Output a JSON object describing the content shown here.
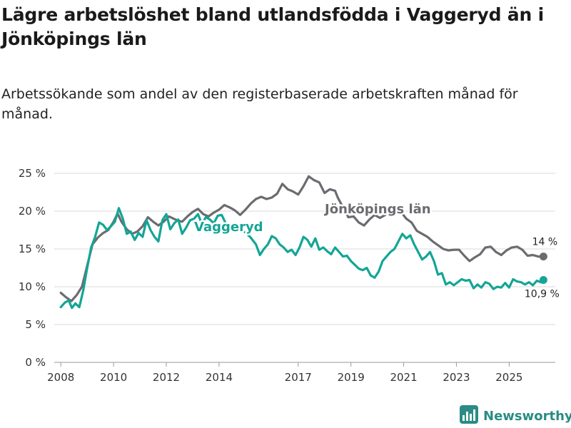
{
  "title": "Lägre arbetslöshet bland utlandsfödda i Vaggeryd än i Jönköpings län",
  "subtitle": "Arbetssökande som andel av den registerbaserade arbetskraften månad för månad.",
  "brand": {
    "name": "Newsworthy",
    "icon": "newsworthy-logo-icon"
  },
  "colors": {
    "jonkoping": "#6b6b70",
    "vaggeryd": "#14a596",
    "grid": "#d9d9d9",
    "brand": "#2a8c84"
  },
  "chart_data": {
    "type": "line",
    "title": "Lägre arbetslöshet bland utlandsfödda i Vaggeryd än i Jönköpings län",
    "xlabel": "",
    "ylabel": "",
    "xlim": [
      2007.75,
      2026.75
    ],
    "ylim": [
      0,
      25
    ],
    "yticks": [
      0,
      5,
      10,
      15,
      20,
      25
    ],
    "ytick_labels": [
      "0 %",
      "5 %",
      "10 %",
      "15 %",
      "20 %",
      "25 %"
    ],
    "xtick_values": [
      2008,
      2010,
      2012,
      2014,
      2017,
      2019,
      2021,
      2023,
      2025
    ],
    "xtick_labels": [
      "2008",
      "2010",
      "2012",
      "2014",
      "2017",
      "2019",
      "2021",
      "2023",
      "2025"
    ],
    "grid": true,
    "series": [
      {
        "name": "Jönköpings län",
        "label": "Jönköpings län",
        "end_label": "14 %",
        "points": [
          [
            2008.0,
            9.2
          ],
          [
            2008.2,
            8.6
          ],
          [
            2008.4,
            8.1
          ],
          [
            2008.6,
            8.9
          ],
          [
            2008.8,
            10.0
          ],
          [
            2009.0,
            12.8
          ],
          [
            2009.2,
            15.6
          ],
          [
            2009.4,
            16.5
          ],
          [
            2009.6,
            17.1
          ],
          [
            2009.8,
            17.5
          ],
          [
            2010.0,
            18.6
          ],
          [
            2010.15,
            19.7
          ],
          [
            2010.3,
            18.6
          ],
          [
            2010.5,
            17.6
          ],
          [
            2010.7,
            17.0
          ],
          [
            2010.9,
            17.3
          ],
          [
            2011.1,
            18.0
          ],
          [
            2011.3,
            19.2
          ],
          [
            2011.5,
            18.6
          ],
          [
            2011.7,
            18.1
          ],
          [
            2011.9,
            18.6
          ],
          [
            2012.1,
            19.3
          ],
          [
            2012.4,
            18.8
          ],
          [
            2012.6,
            18.6
          ],
          [
            2012.8,
            19.3
          ],
          [
            2013.0,
            19.9
          ],
          [
            2013.2,
            20.3
          ],
          [
            2013.4,
            19.6
          ],
          [
            2013.6,
            19.3
          ],
          [
            2013.8,
            19.8
          ],
          [
            2014.0,
            20.2
          ],
          [
            2014.2,
            20.8
          ],
          [
            2014.4,
            20.5
          ],
          [
            2014.6,
            20.1
          ],
          [
            2014.8,
            19.5
          ],
          [
            2015.0,
            20.2
          ],
          [
            2015.2,
            21.0
          ],
          [
            2015.4,
            21.6
          ],
          [
            2015.6,
            21.9
          ],
          [
            2015.8,
            21.6
          ],
          [
            2016.0,
            21.8
          ],
          [
            2016.2,
            22.3
          ],
          [
            2016.4,
            23.6
          ],
          [
            2016.6,
            22.9
          ],
          [
            2016.8,
            22.6
          ],
          [
            2017.0,
            22.2
          ],
          [
            2017.2,
            23.3
          ],
          [
            2017.4,
            24.6
          ],
          [
            2017.6,
            24.1
          ],
          [
            2017.8,
            23.8
          ],
          [
            2018.0,
            22.4
          ],
          [
            2018.2,
            22.9
          ],
          [
            2018.4,
            22.7
          ],
          [
            2018.5,
            21.8
          ],
          [
            2018.7,
            20.5
          ],
          [
            2018.9,
            19.2
          ],
          [
            2019.1,
            19.3
          ],
          [
            2019.3,
            18.5
          ],
          [
            2019.5,
            18.1
          ],
          [
            2019.7,
            18.9
          ],
          [
            2019.9,
            19.5
          ],
          [
            2020.1,
            19.1
          ],
          [
            2020.3,
            19.5
          ],
          [
            2020.5,
            20.2
          ],
          [
            2020.7,
            20.1
          ],
          [
            2020.9,
            19.9
          ],
          [
            2021.1,
            19.0
          ],
          [
            2021.3,
            18.5
          ],
          [
            2021.5,
            17.4
          ],
          [
            2021.7,
            17.0
          ],
          [
            2021.9,
            16.6
          ],
          [
            2022.1,
            16.0
          ],
          [
            2022.3,
            15.5
          ],
          [
            2022.5,
            15.0
          ],
          [
            2022.7,
            14.8
          ],
          [
            2022.9,
            14.9
          ],
          [
            2023.1,
            14.9
          ],
          [
            2023.3,
            14.1
          ],
          [
            2023.5,
            13.4
          ],
          [
            2023.7,
            13.9
          ],
          [
            2023.9,
            14.3
          ],
          [
            2024.1,
            15.2
          ],
          [
            2024.3,
            15.3
          ],
          [
            2024.5,
            14.6
          ],
          [
            2024.7,
            14.2
          ],
          [
            2024.9,
            14.8
          ],
          [
            2025.1,
            15.2
          ],
          [
            2025.3,
            15.3
          ],
          [
            2025.5,
            14.9
          ],
          [
            2025.7,
            14.1
          ],
          [
            2025.9,
            14.2
          ],
          [
            2026.1,
            14.0
          ],
          [
            2026.3,
            14.0
          ]
        ]
      },
      {
        "name": "Vaggeryd",
        "label": "Vaggeryd",
        "end_label": "10,9 %",
        "points": [
          [
            2008.0,
            7.3
          ],
          [
            2008.15,
            7.9
          ],
          [
            2008.3,
            8.2
          ],
          [
            2008.42,
            7.2
          ],
          [
            2008.55,
            7.8
          ],
          [
            2008.7,
            7.3
          ],
          [
            2008.85,
            9.5
          ],
          [
            2009.0,
            12.5
          ],
          [
            2009.15,
            15.2
          ],
          [
            2009.3,
            16.6
          ],
          [
            2009.45,
            18.5
          ],
          [
            2009.6,
            18.2
          ],
          [
            2009.75,
            17.5
          ],
          [
            2009.9,
            18.0
          ],
          [
            2010.05,
            18.6
          ],
          [
            2010.2,
            20.4
          ],
          [
            2010.35,
            19.0
          ],
          [
            2010.5,
            17.0
          ],
          [
            2010.65,
            17.3
          ],
          [
            2010.8,
            16.2
          ],
          [
            2010.95,
            17.1
          ],
          [
            2011.1,
            16.6
          ],
          [
            2011.25,
            18.8
          ],
          [
            2011.4,
            17.5
          ],
          [
            2011.55,
            16.6
          ],
          [
            2011.7,
            16.0
          ],
          [
            2011.85,
            18.8
          ],
          [
            2012.0,
            19.6
          ],
          [
            2012.15,
            17.6
          ],
          [
            2012.3,
            18.4
          ],
          [
            2012.45,
            18.9
          ],
          [
            2012.6,
            17.0
          ],
          [
            2012.75,
            17.8
          ],
          [
            2012.9,
            18.8
          ],
          [
            2013.05,
            19.0
          ],
          [
            2013.2,
            19.6
          ],
          [
            2013.35,
            18.3
          ],
          [
            2013.5,
            19.2
          ],
          [
            2013.65,
            18.9
          ],
          [
            2013.8,
            18.4
          ],
          [
            2013.95,
            19.4
          ],
          [
            2014.1,
            19.5
          ],
          [
            2014.25,
            18.4
          ],
          [
            2014.4,
            18.2
          ],
          [
            2014.55,
            17.8
          ],
          [
            2014.7,
            18.0
          ],
          [
            2014.85,
            17.4
          ],
          [
            2015.0,
            17.2
          ],
          [
            2015.2,
            16.5
          ],
          [
            2015.4,
            15.6
          ],
          [
            2015.55,
            14.2
          ],
          [
            2015.7,
            15.0
          ],
          [
            2015.85,
            15.6
          ],
          [
            2016.0,
            16.7
          ],
          [
            2016.15,
            16.4
          ],
          [
            2016.3,
            15.6
          ],
          [
            2016.45,
            15.2
          ],
          [
            2016.6,
            14.6
          ],
          [
            2016.75,
            14.9
          ],
          [
            2016.9,
            14.2
          ],
          [
            2017.05,
            15.2
          ],
          [
            2017.2,
            16.6
          ],
          [
            2017.35,
            16.2
          ],
          [
            2017.5,
            15.3
          ],
          [
            2017.65,
            16.4
          ],
          [
            2017.8,
            14.9
          ],
          [
            2017.95,
            15.2
          ],
          [
            2018.1,
            14.7
          ],
          [
            2018.25,
            14.3
          ],
          [
            2018.4,
            15.2
          ],
          [
            2018.55,
            14.6
          ],
          [
            2018.7,
            14.0
          ],
          [
            2018.85,
            14.1
          ],
          [
            2019.0,
            13.4
          ],
          [
            2019.15,
            12.9
          ],
          [
            2019.3,
            12.4
          ],
          [
            2019.45,
            12.2
          ],
          [
            2019.6,
            12.5
          ],
          [
            2019.75,
            11.5
          ],
          [
            2019.9,
            11.2
          ],
          [
            2020.05,
            12.0
          ],
          [
            2020.2,
            13.4
          ],
          [
            2020.35,
            14.0
          ],
          [
            2020.5,
            14.6
          ],
          [
            2020.65,
            15.0
          ],
          [
            2020.8,
            16.0
          ],
          [
            2020.95,
            17.0
          ],
          [
            2021.1,
            16.4
          ],
          [
            2021.25,
            16.8
          ],
          [
            2021.4,
            15.6
          ],
          [
            2021.55,
            14.6
          ],
          [
            2021.7,
            13.6
          ],
          [
            2021.85,
            14.0
          ],
          [
            2022.0,
            14.6
          ],
          [
            2022.15,
            13.4
          ],
          [
            2022.3,
            11.6
          ],
          [
            2022.45,
            11.8
          ],
          [
            2022.6,
            10.3
          ],
          [
            2022.75,
            10.6
          ],
          [
            2022.9,
            10.2
          ],
          [
            2023.05,
            10.6
          ],
          [
            2023.2,
            11.0
          ],
          [
            2023.35,
            10.8
          ],
          [
            2023.5,
            10.9
          ],
          [
            2023.65,
            9.8
          ],
          [
            2023.8,
            10.3
          ],
          [
            2023.95,
            9.9
          ],
          [
            2024.1,
            10.6
          ],
          [
            2024.25,
            10.4
          ],
          [
            2024.4,
            9.7
          ],
          [
            2024.55,
            10.0
          ],
          [
            2024.7,
            9.9
          ],
          [
            2024.85,
            10.5
          ],
          [
            2025.0,
            9.9
          ],
          [
            2025.15,
            11.0
          ],
          [
            2025.3,
            10.7
          ],
          [
            2025.45,
            10.6
          ],
          [
            2025.6,
            10.3
          ],
          [
            2025.75,
            10.6
          ],
          [
            2025.9,
            10.2
          ],
          [
            2026.05,
            10.8
          ],
          [
            2026.2,
            10.6
          ],
          [
            2026.3,
            10.9
          ]
        ]
      }
    ]
  }
}
